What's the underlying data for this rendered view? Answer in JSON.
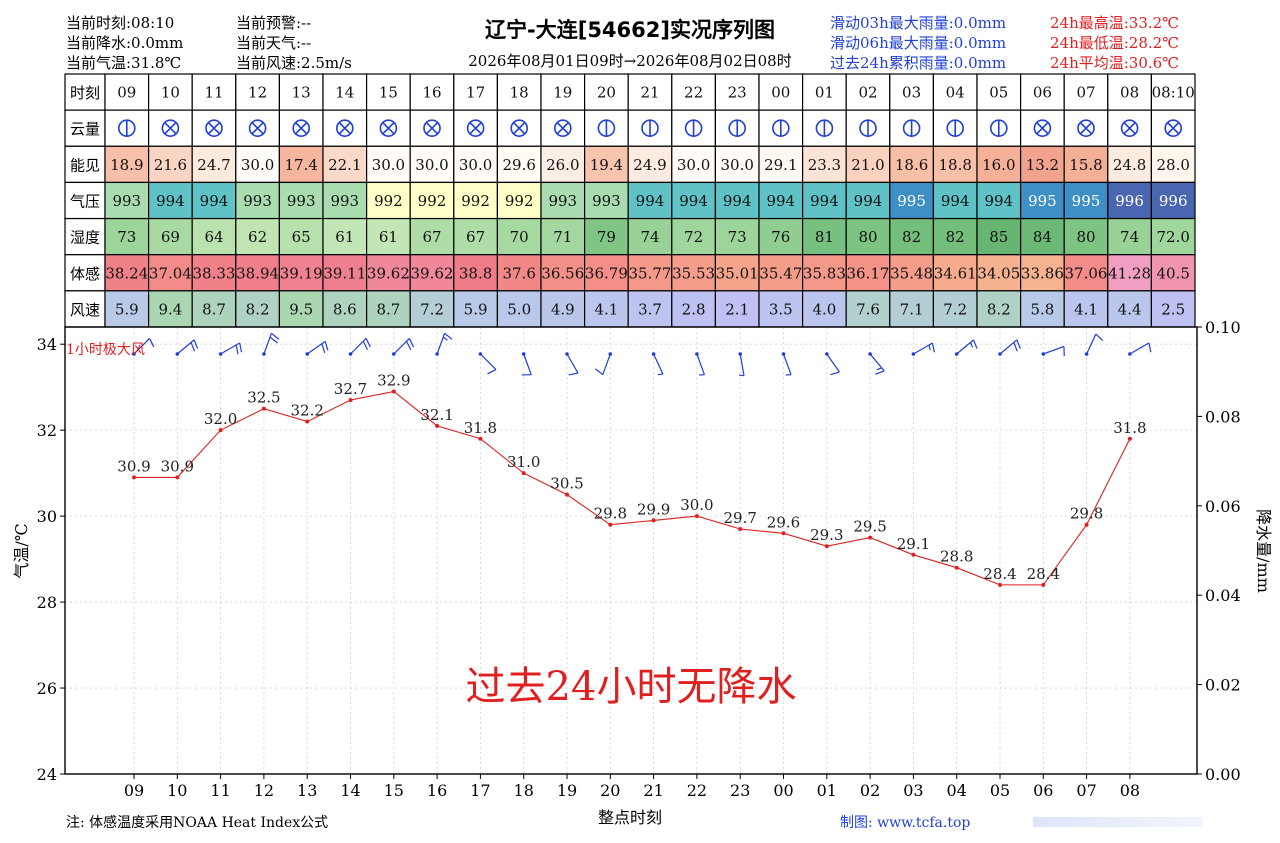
{
  "header": {
    "left1": [
      "当前时刻:08:10",
      "当前降水:0.0mm",
      "当前气温:31.8℃"
    ],
    "left2": [
      "当前预警:--",
      "当前天气:--",
      "当前风速:2.5m/s"
    ],
    "title": "辽宁-大连[54662]实况序列图",
    "subtitle": "2026年08月01日09时→2026年08月02日08时",
    "right_blue": [
      "滑动03h最大雨量:0.0mm",
      "滑动06h最大雨量:0.0mm",
      "过去24h累积雨量:0.0mm"
    ],
    "right_red": [
      "24h最高温:33.2℃",
      "24h最低温:28.2℃",
      "24h平均温:30.6℃"
    ]
  },
  "table": {
    "row_labels": [
      "时刻",
      "云量",
      "能见",
      "气压",
      "湿度",
      "体感",
      "风速"
    ],
    "hours": [
      "09",
      "10",
      "11",
      "12",
      "13",
      "14",
      "15",
      "16",
      "17",
      "18",
      "19",
      "20",
      "21",
      "22",
      "23",
      "00",
      "01",
      "02",
      "03",
      "04",
      "05",
      "06",
      "07",
      "08",
      "08:10"
    ],
    "cloud": [
      "partial",
      "overcast",
      "overcast",
      "overcast",
      "overcast",
      "overcast",
      "overcast",
      "overcast",
      "overcast",
      "overcast",
      "overcast",
      "partial",
      "partial",
      "partial",
      "partial",
      "partial",
      "partial",
      "partial",
      "partial",
      "partial",
      "partial",
      "overcast",
      "overcast",
      "overcast",
      "overcast"
    ],
    "visibility": [
      "18.9",
      "21.6",
      "24.7",
      "30.0",
      "17.4",
      "22.1",
      "30.0",
      "30.0",
      "30.0",
      "29.6",
      "26.0",
      "19.4",
      "24.9",
      "30.0",
      "30.0",
      "29.1",
      "23.3",
      "21.0",
      "18.6",
      "18.8",
      "16.0",
      "13.2",
      "15.8",
      "24.8",
      "28.0"
    ],
    "pressure": [
      "993",
      "994",
      "994",
      "993",
      "993",
      "993",
      "992",
      "992",
      "992",
      "992",
      "993",
      "993",
      "994",
      "994",
      "994",
      "994",
      "994",
      "994",
      "995",
      "994",
      "994",
      "995",
      "995",
      "996",
      "996"
    ],
    "humidity": [
      "73",
      "69",
      "64",
      "62",
      "65",
      "61",
      "61",
      "67",
      "67",
      "70",
      "71",
      "79",
      "74",
      "72",
      "73",
      "76",
      "81",
      "80",
      "82",
      "82",
      "85",
      "84",
      "80",
      "74",
      "72.0"
    ],
    "feels_like": [
      "38.24",
      "37.04",
      "38.33",
      "38.94",
      "39.19",
      "39.11",
      "39.62",
      "39.62",
      "38.8",
      "37.6",
      "36.56",
      "36.79",
      "35.77",
      "35.53",
      "35.01",
      "35.47",
      "35.83",
      "36.17",
      "35.48",
      "34.61",
      "34.05",
      "33.86",
      "37.06",
      "41.28",
      "40.5"
    ],
    "wind_speed": [
      "5.9",
      "9.4",
      "8.7",
      "8.2",
      "9.5",
      "8.6",
      "8.7",
      "7.2",
      "5.9",
      "5.0",
      "4.9",
      "4.1",
      "3.7",
      "2.8",
      "2.1",
      "3.5",
      "4.0",
      "7.6",
      "7.1",
      "7.2",
      "8.2",
      "5.8",
      "4.1",
      "4.4",
      "2.5"
    ]
  },
  "colors": {
    "temp_line": "#e02020",
    "wind_barb": "#1f3fd6",
    "pressure_scale": [
      "#ffffc8",
      "#a9ddb0",
      "#5ec2c6",
      "#3e8fc6",
      "#4a66b0"
    ],
    "wind_scale": [
      "#c0c0f4",
      "#b8cae8",
      "#a8d8a8"
    ]
  },
  "chart_data": {
    "type": "line",
    "x": [
      "09",
      "10",
      "11",
      "12",
      "13",
      "14",
      "15",
      "16",
      "17",
      "18",
      "19",
      "20",
      "21",
      "22",
      "23",
      "00",
      "01",
      "02",
      "03",
      "04",
      "05",
      "06",
      "07",
      "08"
    ],
    "series": [
      {
        "values": [
          30.9,
          30.9,
          32.0,
          32.5,
          32.2,
          32.7,
          32.9,
          32.1,
          31.8,
          31.0,
          30.5,
          29.8,
          29.9,
          30.0,
          29.7,
          29.6,
          29.3,
          29.5,
          29.1,
          28.8,
          28.4,
          28.4,
          29.8,
          31.8
        ]
      }
    ],
    "wind_dir_deg": [
      225,
      230,
      240,
      200,
      235,
      225,
      225,
      200,
      315,
      340,
      330,
      20,
      335,
      340,
      350,
      340,
      325,
      320,
      240,
      230,
      230,
      250,
      205,
      240
    ],
    "ylabel": "气温/℃",
    "y2label": "降水量/mm",
    "xlabel": "整点时刻",
    "ylim": [
      24,
      34.4
    ],
    "yticks": [
      24,
      26,
      28,
      30,
      32,
      34
    ],
    "y2lim": [
      0,
      0.1
    ],
    "y2ticks": [
      "0.00",
      "0.02",
      "0.04",
      "0.06",
      "0.08",
      "0.10"
    ],
    "gust_label": "1小时极大风",
    "annotation": "过去24小时无降水",
    "grid": true
  },
  "footer": {
    "note": "注: 体感温度采用NOAA Heat Index公式",
    "credit": "制图: www.tcfa.top"
  }
}
